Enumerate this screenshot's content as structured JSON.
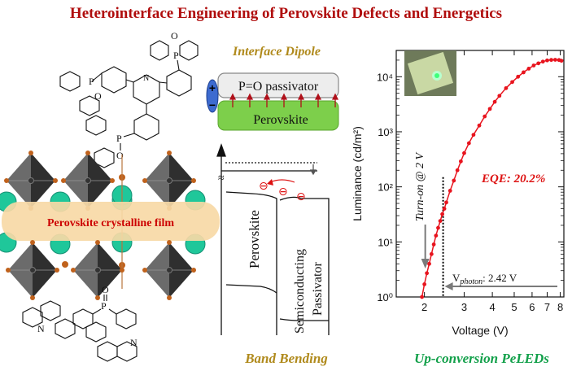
{
  "title": "Heterointerface Engineering of Perovskite Defects and Energetics",
  "left_panel": {
    "film_label": "Perovskite crystalline film",
    "phosphine_oxide_label": "P",
    "oxygen_label": "O",
    "nitrogen_label": "N"
  },
  "middle_panel": {
    "dipole_title": "Interface Dipole",
    "passivator_label": "P=O passivator",
    "perovskite_label": "Perovskite",
    "plus_sign": "+",
    "minus_sign": "−",
    "band_left_label": "Perovskite",
    "band_right_label_1": "Semiconducting",
    "band_right_label_2": "Passivator",
    "axis_break": "≈",
    "electron_symbol": "⊖",
    "band_title": "Band Bending"
  },
  "right_panel": {
    "bottom_title": "Up-conversion PeLEDs",
    "eqe_label": "EQE: 20.2%",
    "turn_on_label": "Turn-on @ 2 V",
    "vphoton_prefix": "V",
    "vphoton_sub": "photon",
    "vphoton_value": ":  2.42 V",
    "colors": {
      "curve": "#e8141e",
      "dotted": "#000000",
      "arrow": "#7a7a7a"
    }
  },
  "chart_data": {
    "type": "scatter",
    "xlabel": "Voltage (V)",
    "ylabel": "Luminance (cd/m²)",
    "x_scale": "log",
    "y_scale": "log",
    "xlim": [
      1.5,
      8.3
    ],
    "ylim": [
      1,
      30000
    ],
    "x_ticks": [
      2,
      3,
      4,
      5,
      6,
      7,
      8
    ],
    "y_ticks": [
      "10⁰",
      "10¹",
      "10²",
      "10³",
      "10⁴"
    ],
    "markers": {
      "vertical_line_x": 2.42
    },
    "series": [
      {
        "values": [
          [
            1.95,
            1.0
          ],
          [
            2.0,
            1.7
          ],
          [
            2.05,
            2.7
          ],
          [
            2.1,
            4.0
          ],
          [
            2.15,
            6.0
          ],
          [
            2.2,
            9.0
          ],
          [
            2.25,
            13
          ],
          [
            2.3,
            18
          ],
          [
            2.35,
            24
          ],
          [
            2.4,
            32
          ],
          [
            2.45,
            40
          ],
          [
            2.5,
            52
          ],
          [
            2.6,
            85
          ],
          [
            2.7,
            130
          ],
          [
            2.8,
            200
          ],
          [
            2.9,
            290
          ],
          [
            3.0,
            410
          ],
          [
            3.15,
            620
          ],
          [
            3.3,
            880
          ],
          [
            3.5,
            1300
          ],
          [
            3.7,
            1900
          ],
          [
            3.9,
            2600
          ],
          [
            4.1,
            3500
          ],
          [
            4.3,
            4500
          ],
          [
            4.6,
            6200
          ],
          [
            4.9,
            8000
          ],
          [
            5.2,
            10000
          ],
          [
            5.5,
            12000
          ],
          [
            5.8,
            14000
          ],
          [
            6.1,
            16000
          ],
          [
            6.4,
            17500
          ],
          [
            6.7,
            18800
          ],
          [
            7.0,
            19800
          ],
          [
            7.3,
            20200
          ],
          [
            7.6,
            20300
          ],
          [
            7.9,
            20100
          ],
          [
            8.1,
            19500
          ]
        ]
      }
    ]
  }
}
